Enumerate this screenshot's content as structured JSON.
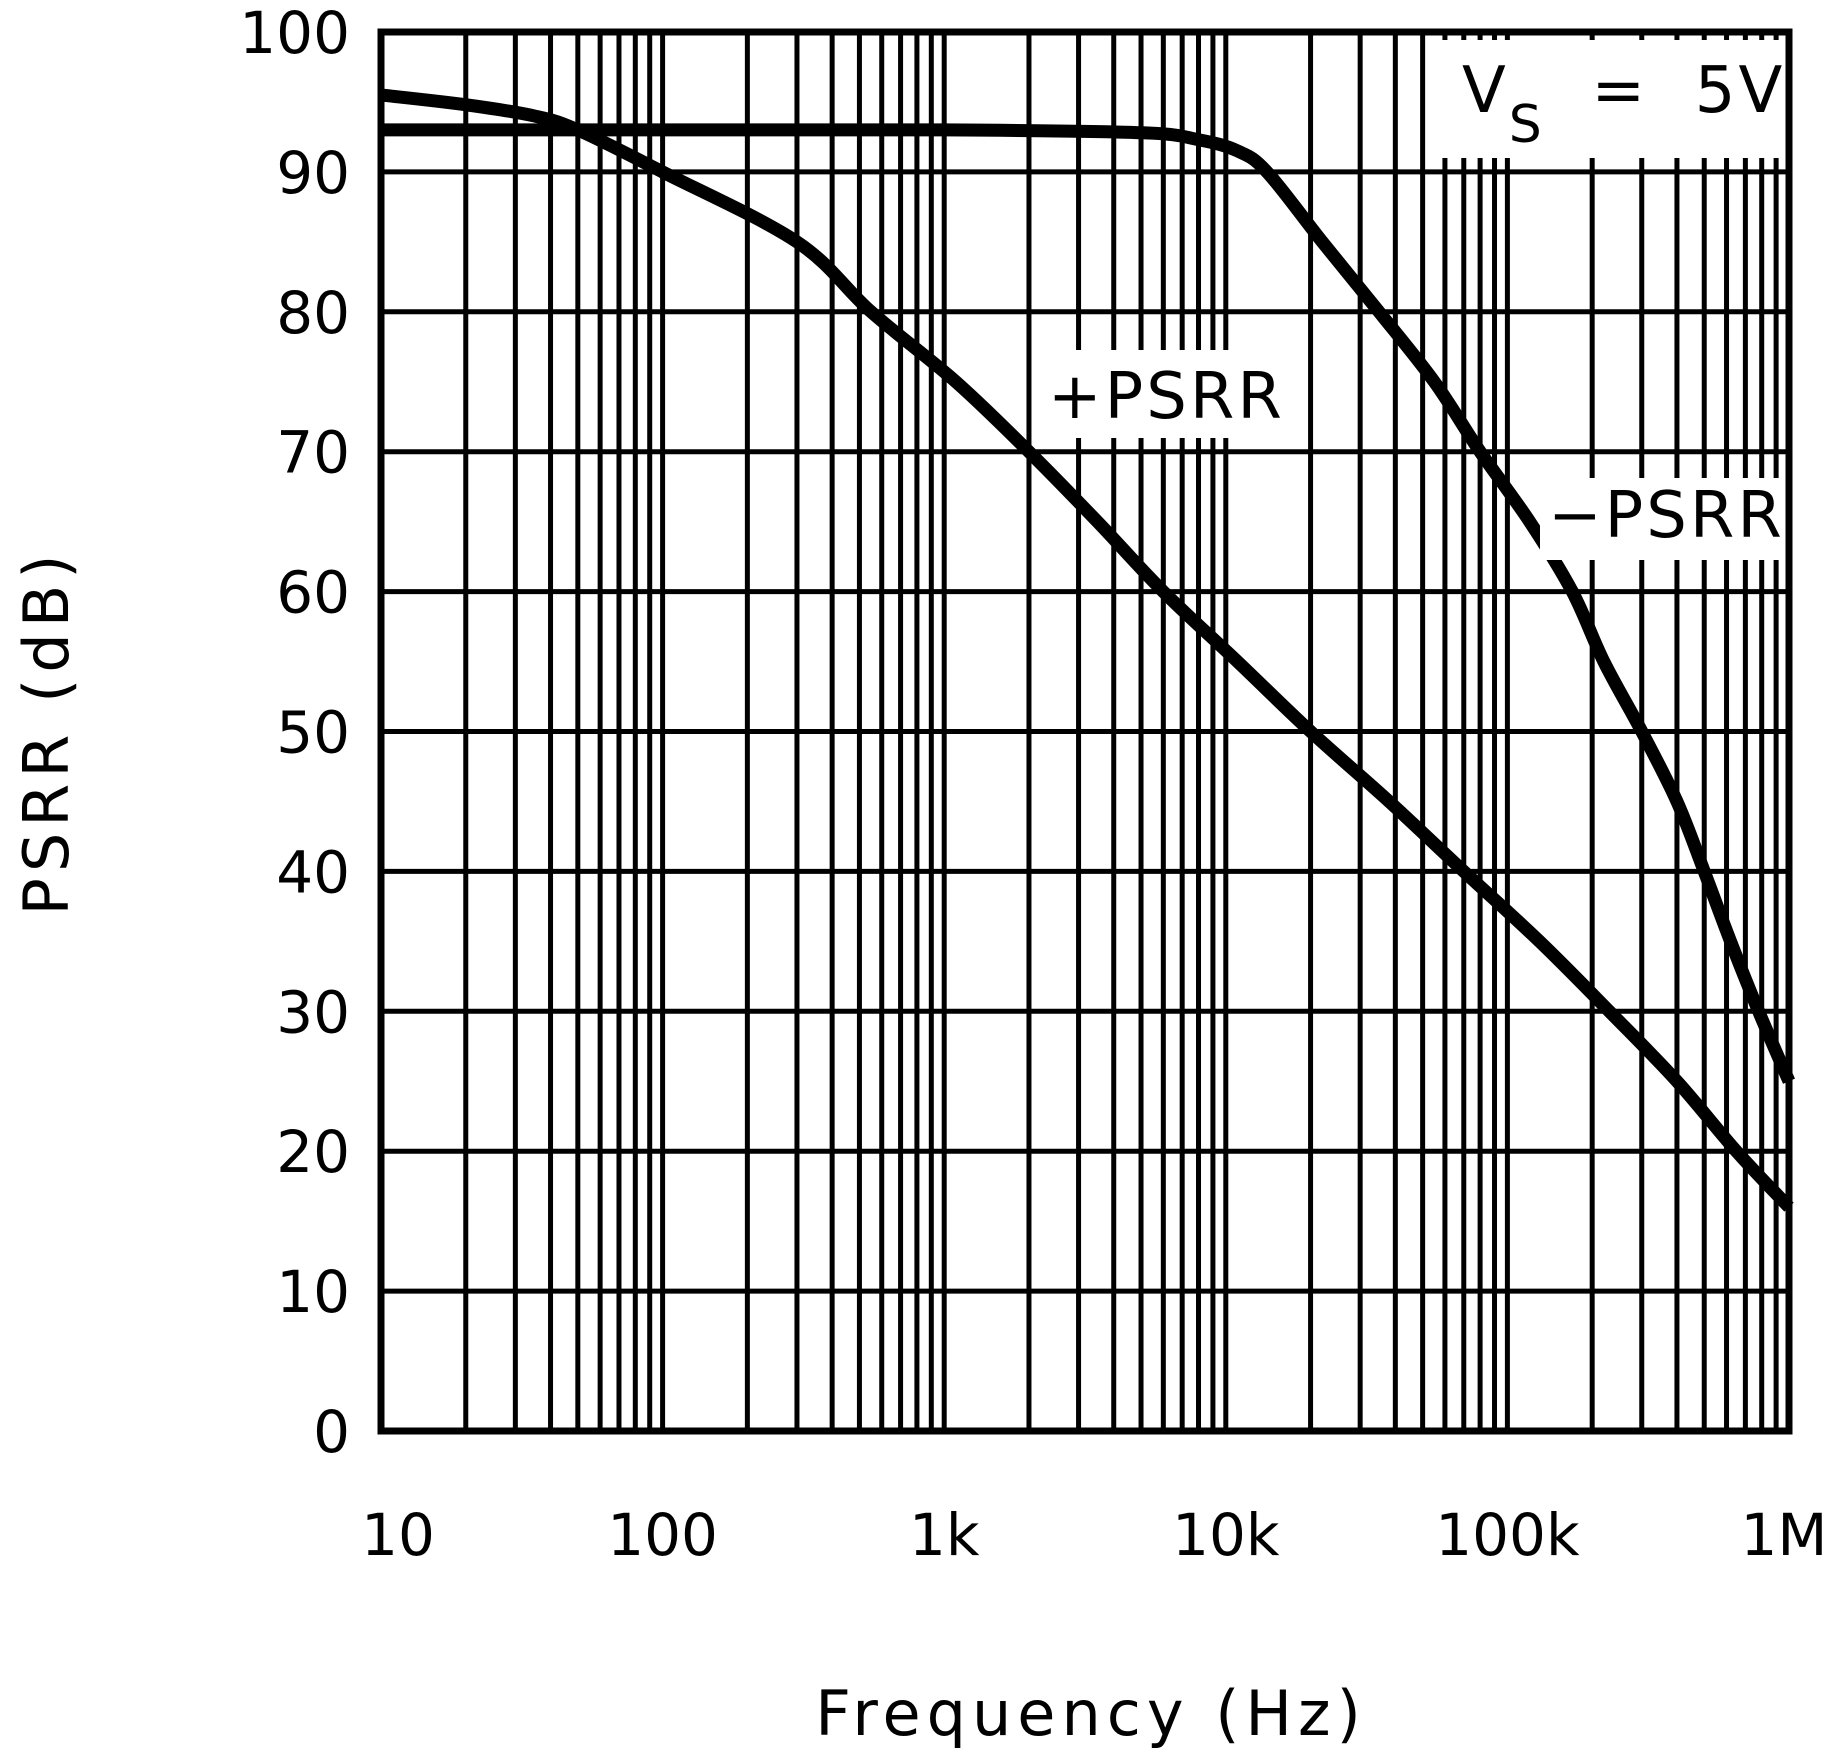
{
  "chart_data": {
    "type": "line",
    "title": "",
    "xlabel": "Frequency (Hz)",
    "ylabel": "PSRR (dB)",
    "xscale": "log",
    "xlim": [
      10,
      1000000
    ],
    "ylim": [
      0,
      100
    ],
    "grid": true,
    "x_ticks": [
      {
        "value": 10,
        "label": "10"
      },
      {
        "value": 100,
        "label": "100"
      },
      {
        "value": 1000,
        "label": "1k"
      },
      {
        "value": 10000,
        "label": "10k"
      },
      {
        "value": 100000,
        "label": "100k"
      },
      {
        "value": 1000000,
        "label": "1M"
      }
    ],
    "y_ticks": [
      0,
      10,
      20,
      30,
      40,
      50,
      60,
      70,
      80,
      90,
      100
    ],
    "annotation": {
      "main": "V",
      "sub": "S",
      "rest": " = 5V"
    },
    "series": [
      {
        "name": "+PSRR",
        "x": [
          10,
          20,
          35,
          50,
          100,
          300,
          550,
          1100,
          2000,
          3500,
          6000,
          11000,
          20000,
          38000,
          70000,
          130000,
          230000,
          400000,
          650000,
          1000000
        ],
        "y": [
          95.5,
          94.8,
          94,
          93,
          90,
          85,
          80,
          75,
          70,
          65,
          60,
          55,
          50,
          45,
          40,
          35,
          30,
          25,
          20,
          16
        ]
      },
      {
        "name": "-PSRR",
        "x": [
          10,
          100,
          1000,
          5000,
          8000,
          11000,
          14000,
          22000,
          35000,
          55000,
          80000,
          120000,
          170000,
          220000,
          300000,
          400000,
          500000,
          620000,
          780000,
          1000000
        ],
        "y": [
          93,
          93,
          93,
          92.8,
          92.3,
          91.5,
          90,
          85,
          80,
          75,
          70,
          65,
          60,
          55,
          50,
          45,
          40,
          35,
          30,
          25
        ]
      }
    ]
  }
}
